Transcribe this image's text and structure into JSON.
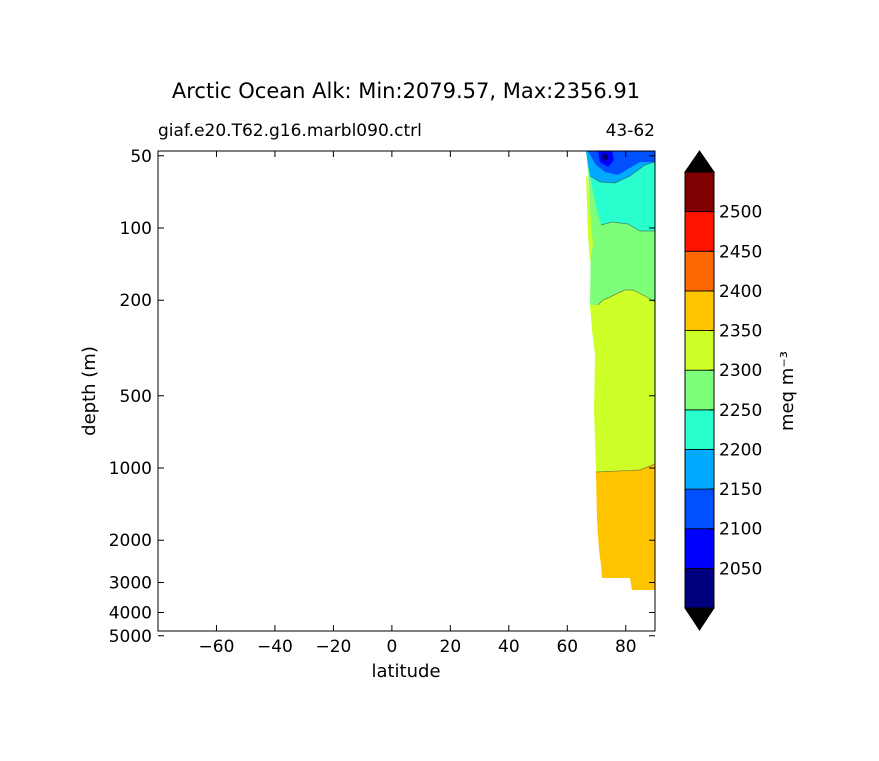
{
  "chart_data": {
    "type": "heatmap",
    "title": "Arctic Ocean Alk: Min:2079.57, Max:2356.91",
    "subtitle_left": "giaf.e20.T62.g16.marbl090.ctrl",
    "subtitle_right": "43-62",
    "xlabel": "latitude",
    "ylabel": "depth (m)",
    "xlim": [
      -80,
      90
    ],
    "x_ticks": [
      "−60",
      "−40",
      "−20",
      "0",
      "20",
      "40",
      "60",
      "80"
    ],
    "x_tick_values": [
      -60,
      -40,
      -20,
      0,
      20,
      40,
      60,
      80
    ],
    "y_scale": "log",
    "y_inverted": true,
    "y_ticks": [
      "50",
      "100",
      "200",
      "500",
      "1000",
      "2000",
      "3000",
      "4000",
      "5000"
    ],
    "y_tick_values": [
      50,
      100,
      200,
      500,
      1000,
      2000,
      3000,
      4000,
      5000
    ],
    "colorbar": {
      "label": "meq m⁻³",
      "tick_labels": [
        "2050",
        "2100",
        "2150",
        "2200",
        "2250",
        "2300",
        "2350",
        "2400",
        "2450",
        "2500"
      ],
      "levels": [
        2000,
        2050,
        2100,
        2150,
        2200,
        2250,
        2300,
        2350,
        2400,
        2450,
        2500,
        2550
      ],
      "colors": [
        "#00007f",
        "#0000ff",
        "#0050ff",
        "#00aaff",
        "#29ffce",
        "#7dff7a",
        "#ceff29",
        "#ffc400",
        "#ff6800",
        "#ff1300",
        "#7f0000"
      ],
      "extend": "both",
      "extend_color": "#000000"
    },
    "regions": [
      {
        "level": "2250-2300",
        "lat_range": [
          68,
          90
        ],
        "depth_range": [
          5,
          220
        ]
      },
      {
        "level": "2300-2350",
        "lat_range": [
          69,
          90
        ],
        "depth_range": [
          180,
          1000
        ]
      },
      {
        "level": "2350-2400",
        "lat_range": [
          70,
          90
        ],
        "depth_range": [
          850,
          4100
        ]
      },
      {
        "level": "2200-2250",
        "lat_range": [
          70,
          90
        ],
        "depth_range": [
          20,
          120
        ]
      },
      {
        "level": "2150-2200",
        "lat_range": [
          70,
          90
        ],
        "depth_range": [
          5,
          45
        ]
      },
      {
        "level": "2100-2150",
        "lat_range": [
          72,
          81
        ],
        "depth_range": [
          5,
          20
        ]
      },
      {
        "level": "2050-2100",
        "lat_range": [
          73,
          76
        ],
        "depth_range": [
          5,
          12
        ]
      }
    ]
  }
}
